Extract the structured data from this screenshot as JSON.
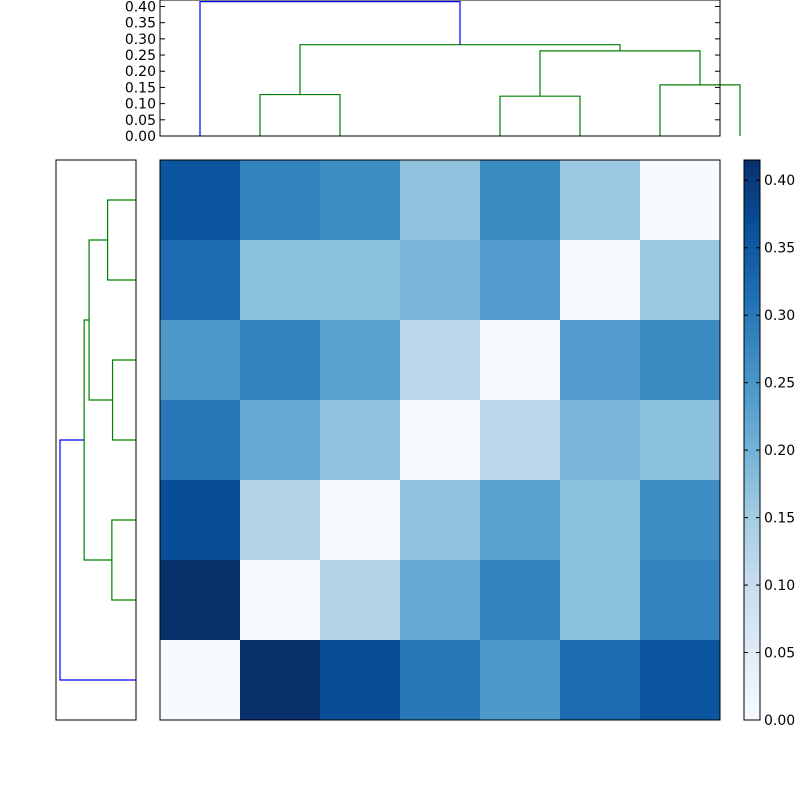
{
  "chart_data": [
    {
      "type": "dendrogram",
      "name": "top-dendrogram",
      "orientation": "top",
      "ylim": [
        0,
        0.42
      ],
      "yticks": [
        "0.00",
        "0.05",
        "0.10",
        "0.15",
        "0.20",
        "0.25",
        "0.30",
        "0.35",
        "0.40"
      ],
      "links": [
        {
          "color": "#008000",
          "left": [
            2.5,
            0
          ],
          "right": [
            4.5,
            0
          ],
          "height": 0.128
        },
        {
          "color": "#008000",
          "left": [
            8.5,
            0
          ],
          "right": [
            10.5,
            0
          ],
          "height": 0.123
        },
        {
          "color": "#008000",
          "left": [
            12.5,
            0
          ],
          "right": [
            14.5,
            0
          ],
          "height": 0.158
        },
        {
          "color": "#008000",
          "left": [
            9.5,
            0.123
          ],
          "right": [
            13.5,
            0.158
          ],
          "height": 0.263
        },
        {
          "color": "#008000",
          "left": [
            3.5,
            0.128
          ],
          "right": [
            11.5,
            0.263
          ],
          "height": 0.282
        },
        {
          "color": "#0000ff",
          "left": [
            1.0,
            0
          ],
          "right": [
            7.5,
            0.282
          ],
          "height": 0.415
        }
      ],
      "xlim": [
        0,
        14
      ]
    },
    {
      "type": "dendrogram",
      "name": "left-dendrogram",
      "orientation": "left",
      "links": [
        {
          "color": "#008000",
          "left": [
            0.5,
            0
          ],
          "right": [
            1.5,
            0
          ],
          "height": 0.127
        },
        {
          "color": "#008000",
          "left": [
            2.5,
            0
          ],
          "right": [
            3.5,
            0
          ],
          "height": 0.105
        },
        {
          "color": "#008000",
          "left": [
            4.5,
            0
          ],
          "right": [
            5.5,
            0
          ],
          "height": 0.108
        },
        {
          "color": "#008000",
          "left": [
            1.0,
            0.127
          ],
          "right": [
            3.0,
            0.105
          ],
          "height": 0.21
        },
        {
          "color": "#008000",
          "left": [
            2.0,
            0.21
          ],
          "right": [
            5.0,
            0.108
          ],
          "height": 0.232
        },
        {
          "color": "#0000ff",
          "left": [
            3.5,
            0.232
          ],
          "right": [
            6.5,
            0
          ],
          "height": 0.34
        }
      ],
      "ylim": [
        0,
        7
      ],
      "xlim": [
        0,
        0.34
      ]
    },
    {
      "type": "heatmap",
      "name": "distance-heatmap",
      "colormap": "Blues",
      "vmin": 0,
      "vmax": 0.415,
      "rows": 7,
      "cols": 7,
      "values": [
        [
          0.355,
          0.285,
          0.265,
          0.17,
          0.27,
          0.16,
          0.0
        ],
        [
          0.32,
          0.175,
          0.175,
          0.19,
          0.24,
          0.0,
          0.16
        ],
        [
          0.245,
          0.285,
          0.23,
          0.12,
          0.0,
          0.24,
          0.27
        ],
        [
          0.3,
          0.215,
          0.17,
          0.0,
          0.12,
          0.19,
          0.175
        ],
        [
          0.37,
          0.125,
          0.0,
          0.17,
          0.23,
          0.175,
          0.265
        ],
        [
          0.415,
          0.0,
          0.125,
          0.215,
          0.285,
          0.175,
          0.285
        ],
        [
          0.0,
          0.415,
          0.37,
          0.3,
          0.245,
          0.32,
          0.355
        ]
      ]
    },
    {
      "type": "colorbar",
      "name": "colorbar",
      "colormap": "Blues",
      "vmin": 0,
      "vmax": 0.415,
      "ticks": [
        0.0,
        0.05,
        0.1,
        0.15,
        0.2,
        0.25,
        0.3,
        0.35,
        0.4
      ],
      "tick_labels": [
        "0.00",
        "0.05",
        "0.10",
        "0.15",
        "0.20",
        "0.25",
        "0.30",
        "0.35",
        "0.40"
      ]
    }
  ]
}
